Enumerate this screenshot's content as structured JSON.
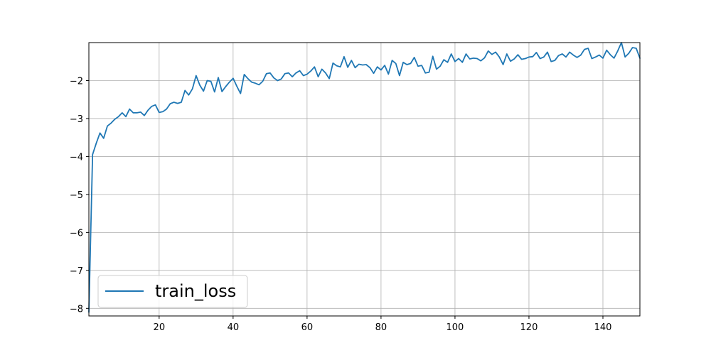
{
  "chart_data": {
    "type": "line",
    "title": "",
    "xlabel": "",
    "ylabel": "",
    "xlim": [
      1,
      150
    ],
    "ylim": [
      -8.2,
      -1.0
    ],
    "grid": true,
    "legend_position": "lower-left",
    "xticks": [
      20,
      40,
      60,
      80,
      100,
      120,
      140
    ],
    "yticks": [
      -8,
      -7,
      -6,
      -5,
      -4,
      -3,
      -2
    ],
    "xtick_labels": [
      "20",
      "40",
      "60",
      "80",
      "100",
      "120",
      "140"
    ],
    "ytick_labels": [
      "−8",
      "−7",
      "−6",
      "−5",
      "−4",
      "−3",
      "−2"
    ],
    "series": [
      {
        "name": "train_loss",
        "color": "#1f77b4",
        "x": [
          1,
          2,
          3,
          4,
          5,
          6,
          7,
          8,
          9,
          10,
          11,
          12,
          13,
          14,
          15,
          16,
          17,
          18,
          19,
          20,
          21,
          22,
          23,
          24,
          25,
          26,
          27,
          28,
          29,
          30,
          31,
          32,
          33,
          34,
          35,
          36,
          37,
          38,
          39,
          40,
          41,
          42,
          43,
          44,
          45,
          46,
          47,
          48,
          49,
          50,
          51,
          52,
          53,
          54,
          55,
          56,
          57,
          58,
          59,
          60,
          61,
          62,
          63,
          64,
          65,
          66,
          67,
          68,
          69,
          70,
          71,
          72,
          73,
          74,
          75,
          76,
          77,
          78,
          79,
          80,
          81,
          82,
          83,
          84,
          85,
          86,
          87,
          88,
          89,
          90,
          91,
          92,
          93,
          94,
          95,
          96,
          97,
          98,
          99,
          100,
          101,
          102,
          103,
          104,
          105,
          106,
          107,
          108,
          109,
          110,
          111,
          112,
          113,
          114,
          115,
          116,
          117,
          118,
          119,
          120,
          121,
          122,
          123,
          124,
          125,
          126,
          127,
          128,
          129,
          130,
          131,
          132,
          133,
          134,
          135,
          136,
          137,
          138,
          139,
          140,
          141,
          142,
          143,
          144,
          145,
          146,
          147,
          148,
          149,
          150
        ],
        "y": [
          -8.1,
          -3.95,
          -3.65,
          -3.38,
          -3.52,
          -3.2,
          -3.12,
          -3.02,
          -2.95,
          -2.85,
          -2.95,
          -2.75,
          -2.85,
          -2.85,
          -2.83,
          -2.92,
          -2.78,
          -2.68,
          -2.64,
          -2.84,
          -2.82,
          -2.75,
          -2.61,
          -2.57,
          -2.6,
          -2.57,
          -2.26,
          -2.38,
          -2.22,
          -1.87,
          -2.12,
          -2.28,
          -2.0,
          -2.02,
          -2.3,
          -1.92,
          -2.29,
          -2.16,
          -2.04,
          -1.94,
          -2.15,
          -2.34,
          -1.84,
          -1.95,
          -2.04,
          -2.07,
          -2.11,
          -2.02,
          -1.82,
          -1.8,
          -1.93,
          -2.0,
          -1.96,
          -1.82,
          -1.8,
          -1.9,
          -1.8,
          -1.74,
          -1.87,
          -1.83,
          -1.75,
          -1.64,
          -1.9,
          -1.7,
          -1.8,
          -1.95,
          -1.54,
          -1.61,
          -1.64,
          -1.37,
          -1.65,
          -1.47,
          -1.66,
          -1.57,
          -1.59,
          -1.58,
          -1.66,
          -1.81,
          -1.64,
          -1.72,
          -1.6,
          -1.83,
          -1.47,
          -1.55,
          -1.87,
          -1.52,
          -1.58,
          -1.55,
          -1.39,
          -1.62,
          -1.6,
          -1.8,
          -1.78,
          -1.36,
          -1.7,
          -1.62,
          -1.45,
          -1.52,
          -1.3,
          -1.5,
          -1.42,
          -1.52,
          -1.3,
          -1.43,
          -1.41,
          -1.42,
          -1.48,
          -1.4,
          -1.22,
          -1.31,
          -1.25,
          -1.38,
          -1.58,
          -1.3,
          -1.49,
          -1.43,
          -1.32,
          -1.44,
          -1.42,
          -1.38,
          -1.37,
          -1.26,
          -1.42,
          -1.38,
          -1.25,
          -1.5,
          -1.47,
          -1.34,
          -1.3,
          -1.38,
          -1.25,
          -1.33,
          -1.39,
          -1.33,
          -1.18,
          -1.15,
          -1.42,
          -1.38,
          -1.33,
          -1.41,
          -1.2,
          -1.32,
          -1.41,
          -1.22,
          -1.0,
          -1.38,
          -1.28,
          -1.13,
          -1.15,
          -1.41
        ]
      }
    ]
  }
}
